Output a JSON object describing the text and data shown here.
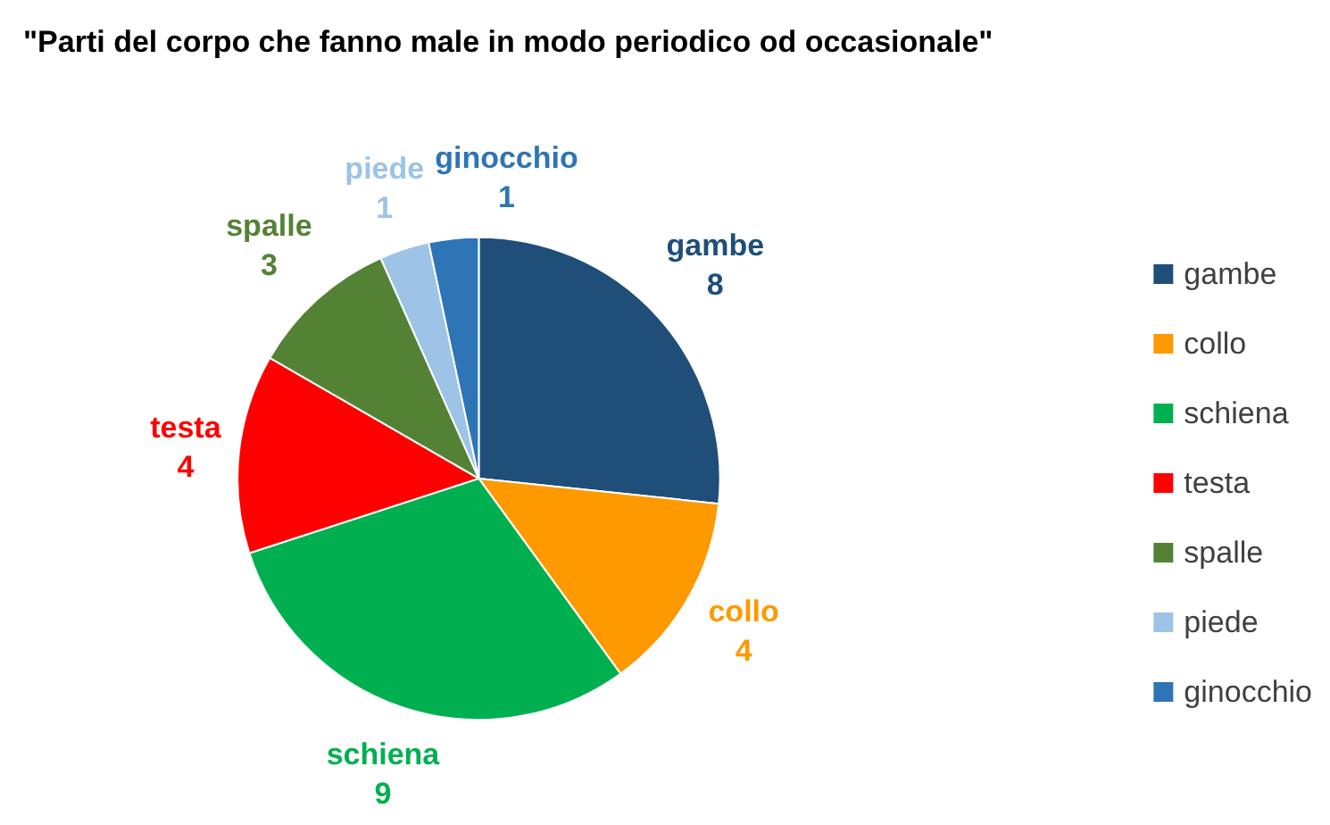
{
  "chart_data": {
    "type": "pie",
    "title": "\"Parti del corpo che fanno male in modo periodico od occasionale\"",
    "categories": [
      "gambe",
      "collo",
      "schiena",
      "testa",
      "spalle",
      "piede",
      "ginocchio"
    ],
    "values": [
      8,
      4,
      9,
      4,
      3,
      1,
      1
    ],
    "colors": [
      "#1f4e79",
      "#ff9900",
      "#00b050",
      "#ff0000",
      "#548235",
      "#9dc3e6",
      "#2e75b6"
    ],
    "data_labels": true,
    "legend": "right"
  }
}
